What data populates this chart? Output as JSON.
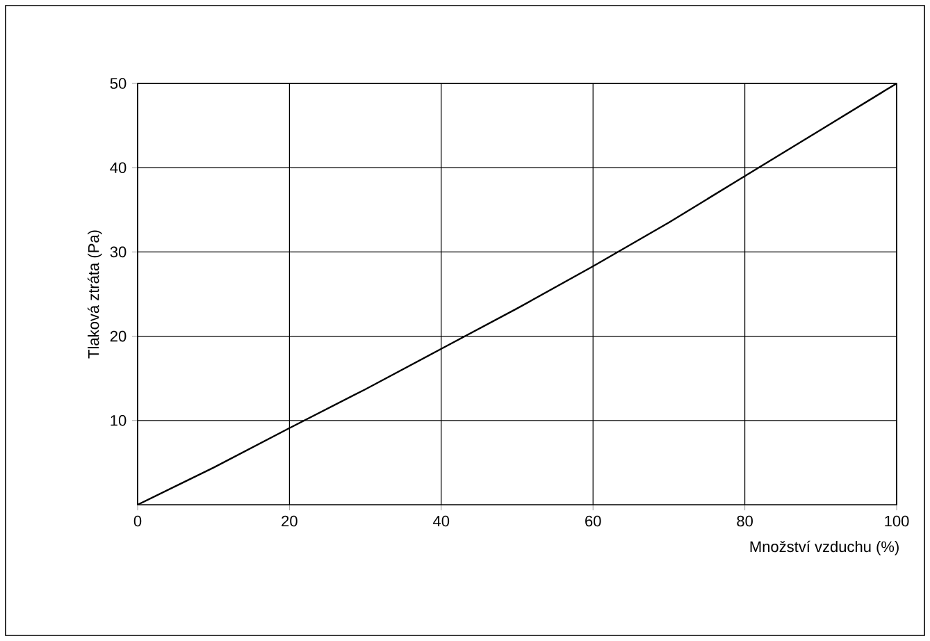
{
  "chart_data": {
    "type": "line",
    "xlabel": "Množství vzduchu (%)",
    "ylabel": "Tlaková ztráta (Pa)",
    "x": [
      0,
      10,
      20,
      30,
      40,
      50,
      60,
      70,
      80,
      90,
      100
    ],
    "series": [
      {
        "color": "#000000",
        "values": [
          0,
          4.4,
          9.1,
          13.7,
          18.5,
          23.3,
          28.3,
          33.5,
          39,
          44.5,
          50
        ]
      }
    ],
    "xlim": [
      0,
      100
    ],
    "ylim": [
      0,
      50
    ],
    "xticks": [
      0,
      20,
      40,
      60,
      80,
      100
    ],
    "yticks": [
      10,
      20,
      30,
      40,
      50
    ],
    "grid": true,
    "marker": "none",
    "line_style": "solid"
  }
}
